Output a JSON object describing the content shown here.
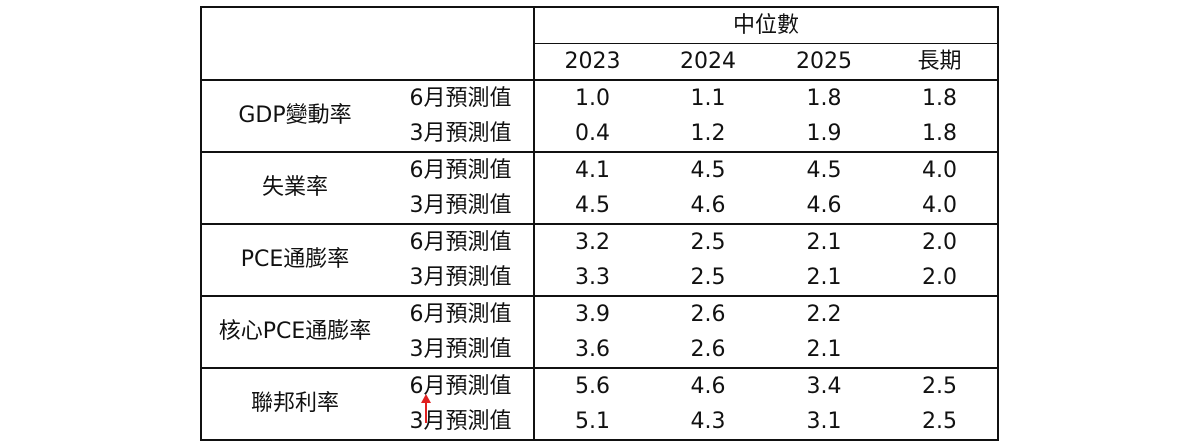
{
  "header": {
    "median_label": "中位數",
    "years": [
      "2023",
      "2024",
      "2025",
      "長期"
    ]
  },
  "rows": [
    {
      "metric": "GDP變動率",
      "june": {
        "label": "6月預測值",
        "values": [
          "1.0",
          "1.1",
          "1.8",
          "1.8"
        ]
      },
      "march": {
        "label": "3月預測值",
        "values": [
          "0.4",
          "1.2",
          "1.9",
          "1.8"
        ]
      }
    },
    {
      "metric": "失業率",
      "june": {
        "label": "6月預測值",
        "values": [
          "4.1",
          "4.5",
          "4.5",
          "4.0"
        ]
      },
      "march": {
        "label": "3月預測值",
        "values": [
          "4.5",
          "4.6",
          "4.6",
          "4.0"
        ]
      }
    },
    {
      "metric": "PCE通膨率",
      "june": {
        "label": "6月預測值",
        "values": [
          "3.2",
          "2.5",
          "2.1",
          "2.0"
        ]
      },
      "march": {
        "label": "3月預測值",
        "values": [
          "3.3",
          "2.5",
          "2.1",
          "2.0"
        ]
      }
    },
    {
      "metric": "核心PCE通膨率",
      "june": {
        "label": "6月預測值",
        "values": [
          "3.9",
          "2.6",
          "2.2",
          ""
        ]
      },
      "march": {
        "label": "3月預測值",
        "values": [
          "3.6",
          "2.6",
          "2.1",
          ""
        ]
      }
    },
    {
      "metric": "聯邦利率",
      "june": {
        "label": "6月預測值",
        "values": [
          "5.6",
          "4.6",
          "3.4",
          "2.5"
        ]
      },
      "march": {
        "label": "3月預測值",
        "values": [
          "5.1",
          "4.3",
          "3.1",
          "2.5"
        ]
      }
    }
  ],
  "annotation": {
    "arrow_color": "#e02020",
    "arrow_icon": "up-arrow-icon"
  }
}
